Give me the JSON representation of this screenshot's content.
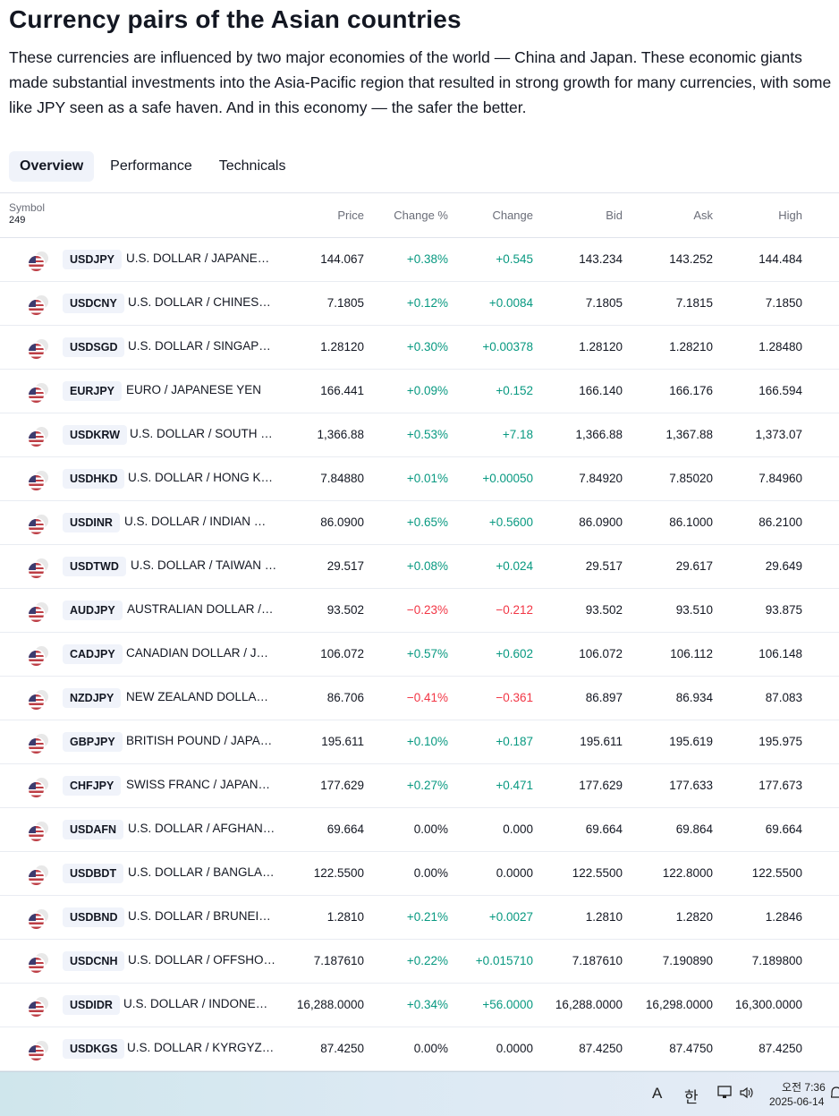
{
  "header": {
    "title": "Currency pairs of the Asian countries",
    "description": "These currencies are influenced by two major economies of the world — China and Japan. These economic giants made substantial investments into the Asia-Pacific region that resulted in strong growth for many currencies, with some like JPY seen as a safe haven. And in this economy — the safer the better."
  },
  "tabs": [
    "Overview",
    "Performance",
    "Technicals"
  ],
  "table": {
    "columns": {
      "symbol": "Symbol",
      "count": "249",
      "price": "Price",
      "change_pct": "Change %",
      "change": "Change",
      "bid": "Bid",
      "ask": "Ask",
      "high": "High"
    },
    "rows": [
      {
        "symbol": "USDJPY",
        "name": "U.S. DOLLAR / JAPANESE YEN",
        "price": "144.067",
        "change_pct": "+0.38%",
        "change": "+0.545",
        "bid": "143.234",
        "ask": "143.252",
        "high": "144.484",
        "dir": "pos"
      },
      {
        "symbol": "USDCNY",
        "name": "U.S. DOLLAR / CHINESE YUAN",
        "price": "7.1805",
        "change_pct": "+0.12%",
        "change": "+0.0084",
        "bid": "7.1805",
        "ask": "7.1815",
        "high": "7.1850",
        "dir": "pos"
      },
      {
        "symbol": "USDSGD",
        "name": "U.S. DOLLAR / SINGAPORE DOLLAR",
        "price": "1.28120",
        "change_pct": "+0.30%",
        "change": "+0.00378",
        "bid": "1.28120",
        "ask": "1.28210",
        "high": "1.28480",
        "dir": "pos"
      },
      {
        "symbol": "EURJPY",
        "name": "EURO / JAPANESE YEN",
        "price": "166.441",
        "change_pct": "+0.09%",
        "change": "+0.152",
        "bid": "166.140",
        "ask": "166.176",
        "high": "166.594",
        "dir": "pos"
      },
      {
        "symbol": "USDKRW",
        "name": "U.S. DOLLAR / SOUTH KOREAN WON",
        "price": "1,366.88",
        "change_pct": "+0.53%",
        "change": "+7.18",
        "bid": "1,366.88",
        "ask": "1,367.88",
        "high": "1,373.07",
        "dir": "pos"
      },
      {
        "symbol": "USDHKD",
        "name": "U.S. DOLLAR / HONG KONG DOLLAR",
        "price": "7.84880",
        "change_pct": "+0.01%",
        "change": "+0.00050",
        "bid": "7.84920",
        "ask": "7.85020",
        "high": "7.84960",
        "dir": "pos"
      },
      {
        "symbol": "USDINR",
        "name": "U.S. DOLLAR / INDIAN RUPEE",
        "price": "86.0900",
        "change_pct": "+0.65%",
        "change": "+0.5600",
        "bid": "86.0900",
        "ask": "86.1000",
        "high": "86.2100",
        "dir": "pos"
      },
      {
        "symbol": "USDTWD",
        "name": "U.S. DOLLAR / TAIWAN DOLLAR",
        "price": "29.517",
        "change_pct": "+0.08%",
        "change": "+0.024",
        "bid": "29.517",
        "ask": "29.617",
        "high": "29.649",
        "dir": "pos"
      },
      {
        "symbol": "AUDJPY",
        "name": "AUSTRALIAN DOLLAR / JAPANESE YEN",
        "price": "93.502",
        "change_pct": "−0.23%",
        "change": "−0.212",
        "bid": "93.502",
        "ask": "93.510",
        "high": "93.875",
        "dir": "neg"
      },
      {
        "symbol": "CADJPY",
        "name": "CANADIAN DOLLAR / JAPANESE YEN",
        "price": "106.072",
        "change_pct": "+0.57%",
        "change": "+0.602",
        "bid": "106.072",
        "ask": "106.112",
        "high": "106.148",
        "dir": "pos"
      },
      {
        "symbol": "NZDJPY",
        "name": "NEW ZEALAND DOLLAR / JAPANESE YEN",
        "price": "86.706",
        "change_pct": "−0.41%",
        "change": "−0.361",
        "bid": "86.897",
        "ask": "86.934",
        "high": "87.083",
        "dir": "neg"
      },
      {
        "symbol": "GBPJPY",
        "name": "BRITISH POUND / JAPANESE YEN",
        "price": "195.611",
        "change_pct": "+0.10%",
        "change": "+0.187",
        "bid": "195.611",
        "ask": "195.619",
        "high": "195.975",
        "dir": "pos"
      },
      {
        "symbol": "CHFJPY",
        "name": "SWISS FRANC / JAPANESE YEN",
        "price": "177.629",
        "change_pct": "+0.27%",
        "change": "+0.471",
        "bid": "177.629",
        "ask": "177.633",
        "high": "177.673",
        "dir": "pos"
      },
      {
        "symbol": "USDAFN",
        "name": "U.S. DOLLAR / AFGHAN AFGHANI",
        "price": "69.664",
        "change_pct": "0.00%",
        "change": "0.000",
        "bid": "69.664",
        "ask": "69.864",
        "high": "69.664",
        "dir": "neu"
      },
      {
        "symbol": "USDBDT",
        "name": "U.S. DOLLAR / BANGLADESHI TAKA",
        "price": "122.5500",
        "change_pct": "0.00%",
        "change": "0.0000",
        "bid": "122.5500",
        "ask": "122.8000",
        "high": "122.5500",
        "dir": "neu"
      },
      {
        "symbol": "USDBND",
        "name": "U.S. DOLLAR / BRUNEIAN DOLLAR",
        "price": "1.2810",
        "change_pct": "+0.21%",
        "change": "+0.0027",
        "bid": "1.2810",
        "ask": "1.2820",
        "high": "1.2846",
        "dir": "pos"
      },
      {
        "symbol": "USDCNH",
        "name": "U.S. DOLLAR / OFFSHORE CHINESE YUAN",
        "price": "7.187610",
        "change_pct": "+0.22%",
        "change": "+0.015710",
        "bid": "7.187610",
        "ask": "7.190890",
        "high": "7.189800",
        "dir": "pos"
      },
      {
        "symbol": "USDIDR",
        "name": "U.S. DOLLAR / INDONESIAN RUPIAH",
        "price": "16,288.0000",
        "change_pct": "+0.34%",
        "change": "+56.0000",
        "bid": "16,288.0000",
        "ask": "16,298.0000",
        "high": "16,300.0000",
        "dir": "pos"
      },
      {
        "symbol": "USDKGS",
        "name": "U.S. DOLLAR / KYRGYZSTANI SOM",
        "price": "87.4250",
        "change_pct": "0.00%",
        "change": "0.0000",
        "bid": "87.4250",
        "ask": "87.4750",
        "high": "87.4250",
        "dir": "neu"
      }
    ]
  },
  "taskbar": {
    "ime_latin": "A",
    "ime_korean": "한",
    "time": "오전 7:36",
    "date": "2025-06-14"
  },
  "colors": {
    "positive": "#089981",
    "negative": "#f23645"
  }
}
